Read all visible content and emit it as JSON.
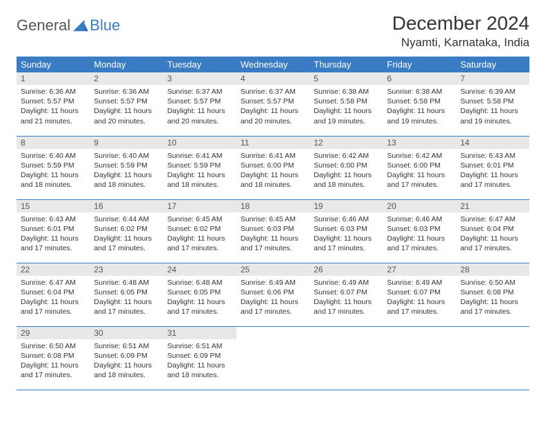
{
  "logo": {
    "word1": "General",
    "word2": "Blue"
  },
  "title": "December 2024",
  "location": "Nyamti, Karnataka, India",
  "colors": {
    "header_bg": "#3a7cc4",
    "header_text": "#ffffff",
    "daynum_bg": "#e8e8e8",
    "row_divider": "#3a7cc4",
    "body_text": "#333333",
    "logo_gray": "#555555",
    "logo_blue": "#3a7cc4",
    "page_bg": "#ffffff"
  },
  "layout": {
    "columns": 7,
    "rows": 5,
    "first_day_col": 0
  },
  "weekdays": [
    "Sunday",
    "Monday",
    "Tuesday",
    "Wednesday",
    "Thursday",
    "Friday",
    "Saturday"
  ],
  "days": [
    {
      "n": 1,
      "sunrise": "6:36 AM",
      "sunset": "5:57 PM",
      "daylight": "11 hours and 21 minutes."
    },
    {
      "n": 2,
      "sunrise": "6:36 AM",
      "sunset": "5:57 PM",
      "daylight": "11 hours and 20 minutes."
    },
    {
      "n": 3,
      "sunrise": "6:37 AM",
      "sunset": "5:57 PM",
      "daylight": "11 hours and 20 minutes."
    },
    {
      "n": 4,
      "sunrise": "6:37 AM",
      "sunset": "5:57 PM",
      "daylight": "11 hours and 20 minutes."
    },
    {
      "n": 5,
      "sunrise": "6:38 AM",
      "sunset": "5:58 PM",
      "daylight": "11 hours and 19 minutes."
    },
    {
      "n": 6,
      "sunrise": "6:38 AM",
      "sunset": "5:58 PM",
      "daylight": "11 hours and 19 minutes."
    },
    {
      "n": 7,
      "sunrise": "6:39 AM",
      "sunset": "5:58 PM",
      "daylight": "11 hours and 19 minutes."
    },
    {
      "n": 8,
      "sunrise": "6:40 AM",
      "sunset": "5:59 PM",
      "daylight": "11 hours and 18 minutes."
    },
    {
      "n": 9,
      "sunrise": "6:40 AM",
      "sunset": "5:59 PM",
      "daylight": "11 hours and 18 minutes."
    },
    {
      "n": 10,
      "sunrise": "6:41 AM",
      "sunset": "5:59 PM",
      "daylight": "11 hours and 18 minutes."
    },
    {
      "n": 11,
      "sunrise": "6:41 AM",
      "sunset": "6:00 PM",
      "daylight": "11 hours and 18 minutes."
    },
    {
      "n": 12,
      "sunrise": "6:42 AM",
      "sunset": "6:00 PM",
      "daylight": "11 hours and 18 minutes."
    },
    {
      "n": 13,
      "sunrise": "6:42 AM",
      "sunset": "6:00 PM",
      "daylight": "11 hours and 17 minutes."
    },
    {
      "n": 14,
      "sunrise": "6:43 AM",
      "sunset": "6:01 PM",
      "daylight": "11 hours and 17 minutes."
    },
    {
      "n": 15,
      "sunrise": "6:43 AM",
      "sunset": "6:01 PM",
      "daylight": "11 hours and 17 minutes."
    },
    {
      "n": 16,
      "sunrise": "6:44 AM",
      "sunset": "6:02 PM",
      "daylight": "11 hours and 17 minutes."
    },
    {
      "n": 17,
      "sunrise": "6:45 AM",
      "sunset": "6:02 PM",
      "daylight": "11 hours and 17 minutes."
    },
    {
      "n": 18,
      "sunrise": "6:45 AM",
      "sunset": "6:03 PM",
      "daylight": "11 hours and 17 minutes."
    },
    {
      "n": 19,
      "sunrise": "6:46 AM",
      "sunset": "6:03 PM",
      "daylight": "11 hours and 17 minutes."
    },
    {
      "n": 20,
      "sunrise": "6:46 AM",
      "sunset": "6:03 PM",
      "daylight": "11 hours and 17 minutes."
    },
    {
      "n": 21,
      "sunrise": "6:47 AM",
      "sunset": "6:04 PM",
      "daylight": "11 hours and 17 minutes."
    },
    {
      "n": 22,
      "sunrise": "6:47 AM",
      "sunset": "6:04 PM",
      "daylight": "11 hours and 17 minutes."
    },
    {
      "n": 23,
      "sunrise": "6:48 AM",
      "sunset": "6:05 PM",
      "daylight": "11 hours and 17 minutes."
    },
    {
      "n": 24,
      "sunrise": "6:48 AM",
      "sunset": "6:05 PM",
      "daylight": "11 hours and 17 minutes."
    },
    {
      "n": 25,
      "sunrise": "6:49 AM",
      "sunset": "6:06 PM",
      "daylight": "11 hours and 17 minutes."
    },
    {
      "n": 26,
      "sunrise": "6:49 AM",
      "sunset": "6:07 PM",
      "daylight": "11 hours and 17 minutes."
    },
    {
      "n": 27,
      "sunrise": "6:49 AM",
      "sunset": "6:07 PM",
      "daylight": "11 hours and 17 minutes."
    },
    {
      "n": 28,
      "sunrise": "6:50 AM",
      "sunset": "6:08 PM",
      "daylight": "11 hours and 17 minutes."
    },
    {
      "n": 29,
      "sunrise": "6:50 AM",
      "sunset": "6:08 PM",
      "daylight": "11 hours and 17 minutes."
    },
    {
      "n": 30,
      "sunrise": "6:51 AM",
      "sunset": "6:09 PM",
      "daylight": "11 hours and 18 minutes."
    },
    {
      "n": 31,
      "sunrise": "6:51 AM",
      "sunset": "6:09 PM",
      "daylight": "11 hours and 18 minutes."
    }
  ],
  "labels": {
    "sunrise": "Sunrise:",
    "sunset": "Sunset:",
    "daylight": "Daylight:"
  }
}
